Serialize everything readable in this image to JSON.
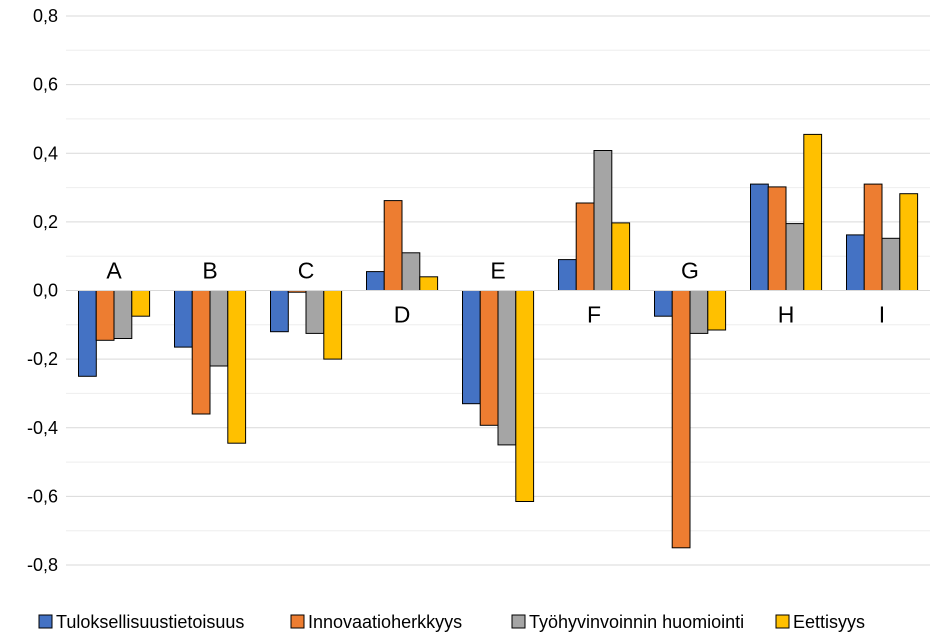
{
  "chart_data": {
    "type": "bar",
    "categories": [
      "A",
      "B",
      "C",
      "D",
      "E",
      "F",
      "G",
      "H",
      "I"
    ],
    "series": [
      {
        "name": "Tuloksellisuustietoisuus",
        "color": "#4472C4",
        "values": [
          -0.25,
          -0.165,
          -0.12,
          0.055,
          -0.33,
          0.09,
          -0.075,
          0.31,
          0.162
        ]
      },
      {
        "name": "Innovaatioherkkyys",
        "color": "#ED7D31",
        "values": [
          -0.145,
          -0.36,
          -0.005,
          0.262,
          -0.393,
          0.255,
          -0.75,
          0.302,
          0.31
        ]
      },
      {
        "name": "Työhyvinvoinnin huomiointi",
        "color": "#A5A5A5",
        "values": [
          -0.14,
          -0.22,
          -0.125,
          0.11,
          -0.45,
          0.408,
          -0.125,
          0.195,
          0.152
        ]
      },
      {
        "name": "Eettisyys",
        "color": "#FFC000",
        "values": [
          -0.075,
          -0.445,
          -0.2,
          0.04,
          -0.615,
          0.197,
          -0.115,
          0.455,
          0.282
        ]
      }
    ],
    "ylim": [
      -0.8,
      0.8
    ],
    "yticks": [
      0.8,
      0.6,
      0.4,
      0.2,
      0.0,
      -0.2,
      -0.4,
      -0.6,
      -0.8
    ],
    "ytick_labels": [
      "0,8",
      "0,6",
      "0,4",
      "0,2",
      "0,0",
      "-0,2",
      "-0,4",
      "-0,6",
      "-0,8"
    ],
    "grid": true,
    "legend": "bottom",
    "title": "",
    "xlabel": "",
    "ylabel": ""
  }
}
